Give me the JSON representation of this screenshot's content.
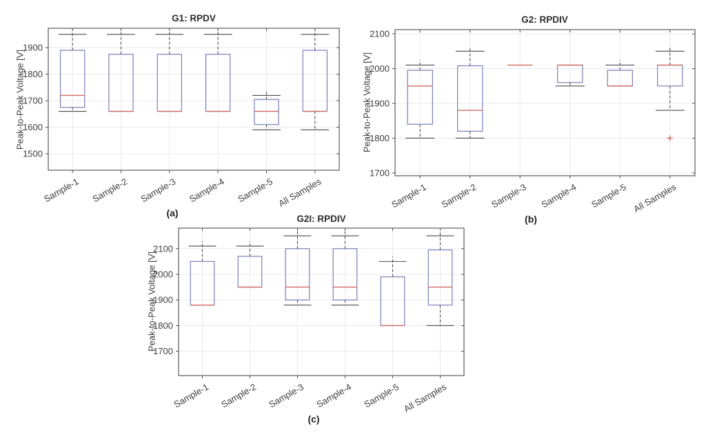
{
  "figure": {
    "type": "boxplot-figure",
    "subfigure_captions": [
      "(a)",
      "(b)",
      "(c)"
    ]
  },
  "colors": {
    "box_edge": "#7b7eb8",
    "median": "#cf6a5e",
    "whisker": "#4a4a4a",
    "outlier": "#cb5a50",
    "grid": "#e9e9ec",
    "axes_frame": "#4b4b4b",
    "text": "#3d3d3d",
    "background": "#ffffff"
  },
  "chart_data": [
    {
      "id": "g1-rpdv",
      "type": "boxplot",
      "title": "G1: RPDV",
      "caption": "(a)",
      "ylabel": "Peak-to-Peak Voltage [V]",
      "categories": [
        "Sample-1",
        "Sample-2",
        "Sample-3",
        "Sample-4",
        "Sample-5",
        "All Samples"
      ],
      "ylim": [
        1438,
        1973
      ],
      "yticks": [
        1500,
        1600,
        1700,
        1800,
        1900
      ],
      "grid": true,
      "boxes": [
        {
          "category": "Sample-1",
          "whisker_low": 1660,
          "q1": 1675,
          "median": 1720,
          "q3": 1890,
          "whisker_high": 1950,
          "outliers": []
        },
        {
          "category": "Sample-2",
          "whisker_low": 1660,
          "q1": 1660,
          "median": 1660,
          "q3": 1875,
          "whisker_high": 1950,
          "outliers": []
        },
        {
          "category": "Sample-3",
          "whisker_low": 1660,
          "q1": 1660,
          "median": 1660,
          "q3": 1875,
          "whisker_high": 1950,
          "outliers": []
        },
        {
          "category": "Sample-4",
          "whisker_low": 1660,
          "q1": 1660,
          "median": 1660,
          "q3": 1875,
          "whisker_high": 1950,
          "outliers": []
        },
        {
          "category": "Sample-5",
          "whisker_low": 1590,
          "q1": 1610,
          "median": 1660,
          "q3": 1705,
          "whisker_high": 1720,
          "outliers": []
        },
        {
          "category": "All Samples",
          "whisker_low": 1590,
          "q1": 1660,
          "median": 1660,
          "q3": 1890,
          "whisker_high": 1950,
          "outliers": []
        }
      ]
    },
    {
      "id": "g2-rpdiv",
      "type": "boxplot",
      "title": "G2: RPDIV",
      "caption": "(b)",
      "ylabel": "Peak-to-Peak Voltage [V]",
      "categories": [
        "Sample-1",
        "Sample-2",
        "Sample-3",
        "Sample-4",
        "Sample-5",
        "All Samples"
      ],
      "ylim": [
        1692,
        2112
      ],
      "yticks": [
        1700,
        1800,
        1900,
        2000,
        2100
      ],
      "grid": true,
      "boxes": [
        {
          "category": "Sample-1",
          "whisker_low": 1800,
          "q1": 1840,
          "median": 1950,
          "q3": 1995,
          "whisker_high": 2010,
          "outliers": []
        },
        {
          "category": "Sample-2",
          "whisker_low": 1800,
          "q1": 1820,
          "median": 1880,
          "q3": 2008,
          "whisker_high": 2050,
          "outliers": []
        },
        {
          "category": "Sample-3",
          "whisker_low": 2010,
          "q1": 2010,
          "median": 2010,
          "q3": 2010,
          "whisker_high": 2010,
          "outliers": []
        },
        {
          "category": "Sample-4",
          "whisker_low": 1950,
          "q1": 1960,
          "median": 2010,
          "q3": 2010,
          "whisker_high": 2010,
          "outliers": []
        },
        {
          "category": "Sample-5",
          "whisker_low": 1950,
          "q1": 1950,
          "median": 1950,
          "q3": 1995,
          "whisker_high": 2010,
          "outliers": []
        },
        {
          "category": "All Samples",
          "whisker_low": 1880,
          "q1": 1950,
          "median": 2010,
          "q3": 2010,
          "whisker_high": 2050,
          "outliers": [
            1800
          ]
        }
      ]
    },
    {
      "id": "g2i-rpdiv",
      "type": "boxplot",
      "title": "G2I: RPDIV",
      "caption": "(c)",
      "ylabel": "Peak-to-Peak Voltage [V]",
      "categories": [
        "Sample-1",
        "Sample-2",
        "Sample-3",
        "Sample-4",
        "Sample-5",
        "All Samples"
      ],
      "ylim": [
        1605,
        2180
      ],
      "yticks": [
        1700,
        1800,
        1900,
        2000,
        2100
      ],
      "grid": true,
      "boxes": [
        {
          "category": "Sample-1",
          "whisker_low": 1880,
          "q1": 1880,
          "median": 1880,
          "q3": 2050,
          "whisker_high": 2110,
          "outliers": []
        },
        {
          "category": "Sample-2",
          "whisker_low": 1950,
          "q1": 1950,
          "median": 1950,
          "q3": 2070,
          "whisker_high": 2110,
          "outliers": []
        },
        {
          "category": "Sample-3",
          "whisker_low": 1880,
          "q1": 1900,
          "median": 1950,
          "q3": 2100,
          "whisker_high": 2150,
          "outliers": []
        },
        {
          "category": "Sample-4",
          "whisker_low": 1880,
          "q1": 1900,
          "median": 1950,
          "q3": 2100,
          "whisker_high": 2150,
          "outliers": []
        },
        {
          "category": "Sample-5",
          "whisker_low": 1800,
          "q1": 1800,
          "median": 1800,
          "q3": 1990,
          "whisker_high": 2050,
          "outliers": []
        },
        {
          "category": "All Samples",
          "whisker_low": 1800,
          "q1": 1880,
          "median": 1950,
          "q3": 2095,
          "whisker_high": 2150,
          "outliers": []
        }
      ]
    }
  ]
}
